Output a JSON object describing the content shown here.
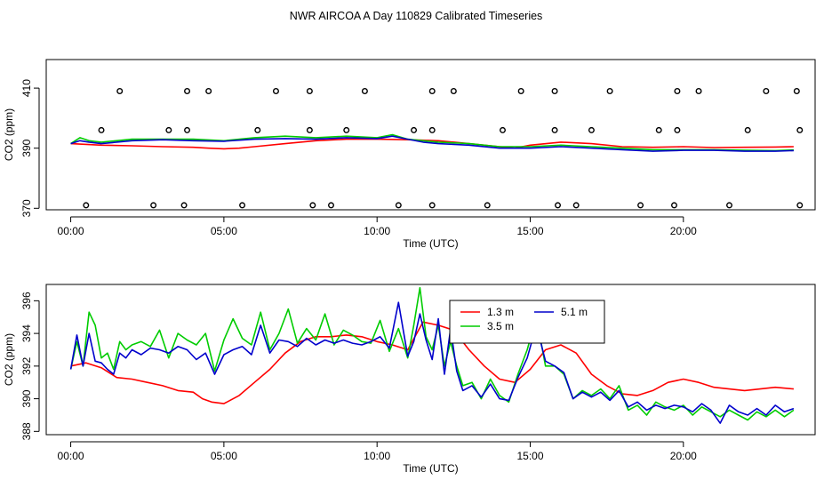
{
  "page_title": "NWR AIRCOA A  Day 110829  Calibrated Timeseries",
  "chart_data": [
    {
      "type": "line",
      "title": "",
      "xlabel": "Time (UTC)",
      "ylabel": "CO2 (ppm)",
      "xlim": [
        -0.8,
        24.3
      ],
      "ylim": [
        369.5,
        419.5
      ],
      "x_ticks": [
        0,
        5,
        10,
        15,
        20
      ],
      "x_tick_labels": [
        "00:00",
        "05:00",
        "10:00",
        "15:00",
        "20:00"
      ],
      "y_ticks": [
        370,
        390,
        410
      ],
      "y_tick_labels": [
        "370",
        "390",
        "410"
      ],
      "series": [
        {
          "name": "1.3 m",
          "color": "#ff0000",
          "x": [
            0,
            1,
            2,
            3,
            4,
            4.5,
            5,
            5.5,
            6,
            7,
            8,
            9,
            10,
            11,
            12,
            13,
            14,
            14.5,
            15,
            16,
            17,
            18,
            19,
            20,
            21,
            22,
            23,
            23.6
          ],
          "values": [
            391.5,
            391.0,
            390.8,
            390.5,
            390.3,
            390.0,
            389.8,
            390.0,
            390.5,
            391.5,
            392.5,
            393.0,
            393.0,
            392.8,
            392.5,
            391.5,
            390.5,
            390.0,
            391.0,
            392.0,
            391.5,
            390.5,
            390.3,
            390.5,
            390.2,
            390.3,
            390.4,
            390.5
          ]
        },
        {
          "name": "3.5 m",
          "color": "#00cc00",
          "x": [
            0,
            0.3,
            0.6,
            1,
            2,
            3,
            4,
            5,
            6,
            7,
            8,
            9,
            10,
            10.5,
            11,
            11.5,
            12,
            13,
            14,
            15,
            16,
            17,
            18,
            19,
            20,
            21,
            22,
            23,
            23.6
          ],
          "values": [
            391.5,
            393.5,
            392.5,
            392.0,
            393.0,
            393.0,
            393.0,
            392.5,
            393.5,
            394.0,
            393.5,
            394.0,
            393.5,
            394.5,
            393.0,
            392.5,
            392.0,
            391.5,
            390.5,
            390.5,
            391.0,
            390.5,
            390.0,
            389.5,
            389.5,
            389.5,
            389.3,
            389.2,
            389.4
          ]
        },
        {
          "name": "5.1 m",
          "color": "#0000cc",
          "x": [
            0,
            0.3,
            0.6,
            1,
            2,
            3,
            4,
            5,
            6,
            7,
            8,
            9,
            10,
            10.5,
            11,
            11.5,
            12,
            13,
            14,
            15,
            16,
            17,
            18,
            19,
            20,
            21,
            22,
            23,
            23.6
          ],
          "values": [
            391.5,
            392.5,
            392.0,
            391.5,
            392.5,
            392.8,
            392.5,
            392.3,
            393.0,
            393.2,
            393.0,
            393.5,
            393.2,
            394.0,
            393.0,
            392.0,
            391.5,
            391.0,
            390.0,
            390.0,
            390.5,
            390.0,
            389.5,
            389.0,
            389.3,
            389.3,
            389.0,
            389.0,
            389.2
          ]
        }
      ],
      "flag_markers": {
        "y_409": [
          1.6,
          3.8,
          4.5,
          6.7,
          7.8,
          9.6,
          11.8,
          12.5,
          14.7,
          15.8,
          17.6,
          19.8,
          20.5,
          22.7,
          23.7
        ],
        "y_396": [
          1.0,
          3.2,
          3.8,
          6.1,
          7.8,
          9.0,
          11.2,
          11.8,
          14.1,
          15.8,
          17.0,
          19.2,
          19.8,
          22.1,
          23.8
        ],
        "y_371": [
          0.5,
          2.7,
          3.7,
          5.6,
          7.9,
          8.5,
          10.7,
          11.8,
          13.6,
          15.9,
          16.5,
          18.6,
          19.7,
          21.5,
          23.8
        ]
      }
    },
    {
      "type": "line",
      "title": "",
      "xlabel": "Time (UTC)",
      "ylabel": "CO2 (ppm)",
      "xlim": [
        -0.8,
        24.3
      ],
      "ylim": [
        387.8,
        397.0
      ],
      "x_ticks": [
        0,
        5,
        10,
        15,
        20
      ],
      "x_tick_labels": [
        "00:00",
        "05:00",
        "10:00",
        "15:00",
        "20:00"
      ],
      "y_ticks": [
        388,
        390,
        392,
        394,
        396
      ],
      "y_tick_labels": [
        "388",
        "390",
        "392",
        "394",
        "396"
      ],
      "legend": {
        "position": "top-right-center",
        "entries": [
          "1.3 m",
          "3.5 m",
          "5.1 m"
        ]
      },
      "series": [
        {
          "name": "1.3 m",
          "color": "#ff0000",
          "x": [
            0,
            0.5,
            1,
            1.5,
            2,
            2.5,
            3,
            3.5,
            4,
            4.3,
            4.6,
            5,
            5.5,
            6,
            6.5,
            7,
            7.5,
            8,
            8.5,
            9,
            9.5,
            10,
            10.5,
            11,
            11.5,
            12,
            12.5,
            13,
            13.5,
            14,
            14.5,
            15,
            15.5,
            16,
            16.5,
            17,
            17.5,
            18,
            18.5,
            19,
            19.5,
            20,
            20.5,
            21,
            21.5,
            22,
            22.5,
            23,
            23.6
          ],
          "values": [
            392.0,
            392.2,
            391.9,
            391.3,
            391.2,
            391.0,
            390.8,
            390.5,
            390.4,
            390.0,
            389.8,
            389.7,
            390.2,
            391.0,
            391.8,
            392.8,
            393.5,
            393.8,
            393.8,
            393.9,
            393.8,
            393.5,
            393.3,
            393.0,
            394.7,
            394.5,
            394.2,
            393.0,
            392.0,
            391.2,
            391.0,
            391.8,
            393.0,
            393.3,
            392.8,
            391.5,
            390.8,
            390.3,
            390.2,
            390.5,
            391.0,
            391.2,
            391.0,
            390.7,
            390.6,
            390.5,
            390.6,
            390.7,
            390.6
          ]
        },
        {
          "name": "3.5 m",
          "color": "#00cc00",
          "x": [
            0,
            0.2,
            0.4,
            0.6,
            0.8,
            1,
            1.2,
            1.4,
            1.6,
            1.8,
            2,
            2.3,
            2.6,
            2.9,
            3.2,
            3.5,
            3.8,
            4.1,
            4.4,
            4.7,
            5,
            5.3,
            5.6,
            5.9,
            6.2,
            6.5,
            6.8,
            7.1,
            7.4,
            7.7,
            8,
            8.3,
            8.6,
            8.9,
            9.2,
            9.5,
            9.8,
            10.1,
            10.4,
            10.7,
            11,
            11.2,
            11.4,
            11.6,
            11.8,
            12.0,
            12.2,
            12.4,
            12.6,
            12.8,
            13.1,
            13.4,
            13.7,
            14.0,
            14.3,
            14.6,
            14.9,
            15.2,
            15.5,
            15.8,
            16.1,
            16.4,
            16.7,
            17.0,
            17.3,
            17.6,
            17.9,
            18.2,
            18.5,
            18.8,
            19.1,
            19.4,
            19.7,
            20.0,
            20.3,
            20.6,
            20.9,
            21.2,
            21.5,
            21.8,
            22.1,
            22.4,
            22.7,
            23.0,
            23.3,
            23.6
          ],
          "values": [
            391.8,
            393.5,
            392.0,
            395.3,
            394.5,
            392.5,
            392.8,
            391.8,
            393.5,
            393.0,
            393.3,
            393.5,
            393.2,
            394.2,
            392.5,
            394.0,
            393.6,
            393.3,
            394.0,
            391.7,
            393.6,
            394.9,
            393.7,
            393.3,
            395.3,
            393.0,
            394.0,
            395.5,
            393.4,
            394.3,
            393.6,
            395.2,
            393.3,
            394.2,
            393.9,
            393.5,
            393.4,
            394.8,
            392.9,
            394.3,
            392.5,
            394.5,
            396.8,
            393.8,
            393.0,
            394.5,
            392.0,
            393.5,
            392.0,
            390.8,
            391.0,
            390.0,
            391.2,
            390.2,
            389.8,
            391.5,
            393.0,
            395.0,
            392.0,
            392.0,
            391.5,
            390.0,
            390.5,
            390.2,
            390.6,
            390.0,
            390.8,
            389.3,
            389.6,
            389.0,
            389.8,
            389.5,
            389.3,
            389.6,
            389.0,
            389.5,
            389.2,
            388.9,
            389.3,
            389.0,
            388.7,
            389.2,
            388.9,
            389.3,
            388.9,
            389.3
          ]
        },
        {
          "name": "5.1 m",
          "color": "#0000cc",
          "x": [
            0,
            0.2,
            0.4,
            0.6,
            0.8,
            1,
            1.2,
            1.4,
            1.6,
            1.8,
            2,
            2.3,
            2.6,
            2.9,
            3.2,
            3.5,
            3.8,
            4.1,
            4.4,
            4.7,
            5,
            5.3,
            5.6,
            5.9,
            6.2,
            6.5,
            6.8,
            7.1,
            7.4,
            7.7,
            8,
            8.3,
            8.6,
            8.9,
            9.2,
            9.5,
            9.8,
            10.1,
            10.4,
            10.7,
            11,
            11.2,
            11.4,
            11.6,
            11.8,
            12.0,
            12.2,
            12.4,
            12.6,
            12.8,
            13.1,
            13.4,
            13.7,
            14.0,
            14.3,
            14.6,
            14.9,
            15.2,
            15.5,
            15.8,
            16.1,
            16.4,
            16.7,
            17.0,
            17.3,
            17.6,
            17.9,
            18.2,
            18.5,
            18.8,
            19.1,
            19.4,
            19.7,
            20.0,
            20.3,
            20.6,
            20.9,
            21.2,
            21.5,
            21.8,
            22.1,
            22.4,
            22.7,
            23.0,
            23.3,
            23.6
          ],
          "values": [
            391.8,
            393.9,
            392.0,
            394.0,
            392.3,
            392.2,
            391.8,
            391.5,
            392.8,
            392.5,
            393.0,
            392.7,
            393.1,
            393.0,
            392.8,
            393.2,
            393.0,
            392.4,
            392.8,
            391.5,
            392.7,
            393.0,
            393.2,
            392.7,
            394.5,
            392.8,
            393.6,
            393.5,
            393.2,
            393.7,
            393.3,
            393.6,
            393.4,
            393.6,
            393.4,
            393.3,
            393.5,
            393.8,
            393.1,
            395.9,
            392.6,
            393.5,
            395.2,
            393.6,
            392.4,
            394.9,
            391.5,
            394.3,
            391.7,
            390.5,
            390.8,
            390.1,
            390.9,
            390.0,
            389.9,
            391.3,
            392.5,
            394.5,
            392.3,
            392.0,
            391.6,
            390.0,
            390.4,
            390.1,
            390.4,
            389.9,
            390.5,
            389.5,
            389.8,
            389.3,
            389.6,
            389.4,
            389.6,
            389.5,
            389.2,
            389.7,
            389.3,
            388.5,
            389.6,
            389.2,
            389.0,
            389.4,
            389.0,
            389.6,
            389.2,
            389.4
          ]
        }
      ]
    }
  ]
}
